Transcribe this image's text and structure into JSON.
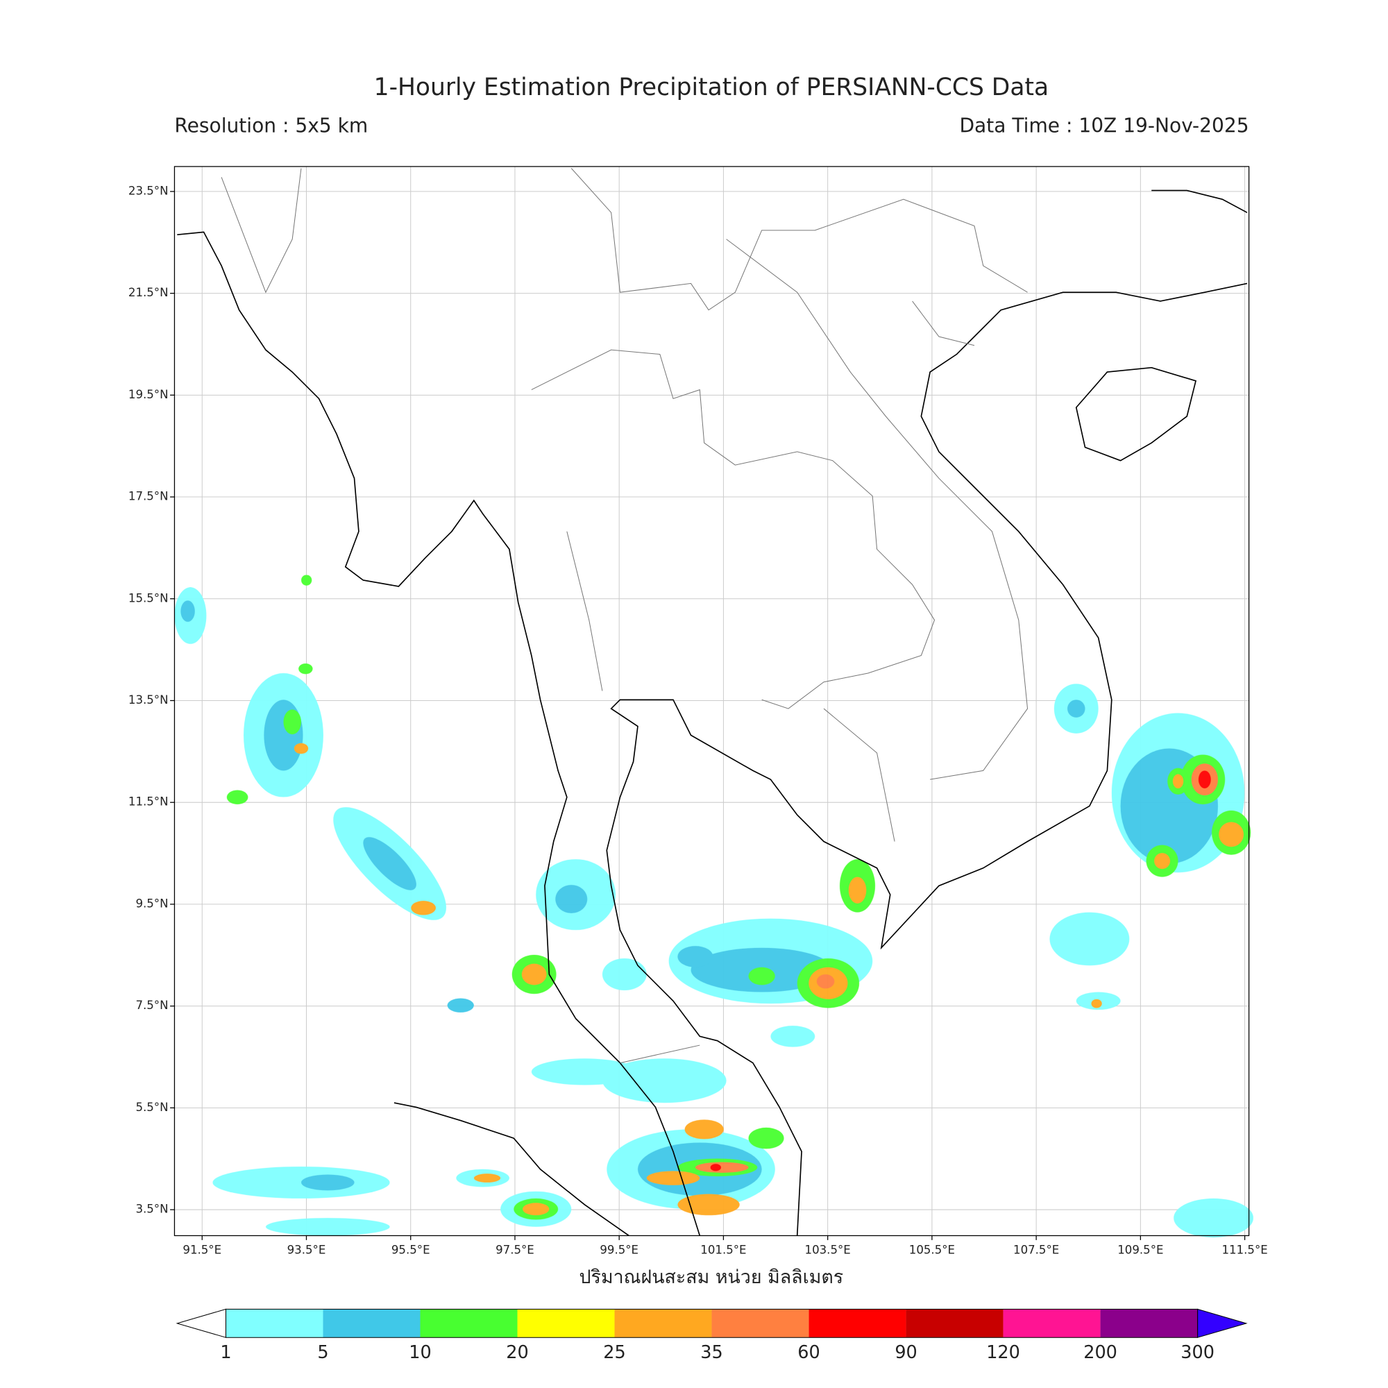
{
  "header": {
    "title": "1-Hourly Estimation Precipitation of PERSIANN-CCS Data",
    "resolution": "Resolution : 5x5 km",
    "data_time": "Data Time : 10Z 19-Nov-2025"
  },
  "map": {
    "lon_range": [
      90.97,
      111.58
    ],
    "lat_range": [
      2.99,
      23.99
    ],
    "grid": true,
    "lon_ticks": [
      {
        "value": 91.5,
        "label": "91.5°E"
      },
      {
        "value": 93.5,
        "label": "93.5°E"
      },
      {
        "value": 95.5,
        "label": "95.5°E"
      },
      {
        "value": 97.5,
        "label": "97.5°E"
      },
      {
        "value": 99.5,
        "label": "99.5°E"
      },
      {
        "value": 101.5,
        "label": "101.5°E"
      },
      {
        "value": 103.5,
        "label": "103.5°E"
      },
      {
        "value": 105.5,
        "label": "105.5°E"
      },
      {
        "value": 107.5,
        "label": "107.5°E"
      },
      {
        "value": 109.5,
        "label": "109.5°E"
      },
      {
        "value": 111.5,
        "label": "111.5°E"
      }
    ],
    "lat_ticks": [
      {
        "value": 23.5,
        "label": "23.5°N"
      },
      {
        "value": 21.5,
        "label": "21.5°N"
      },
      {
        "value": 19.5,
        "label": "19.5°N"
      },
      {
        "value": 17.5,
        "label": "17.5°N"
      },
      {
        "value": 15.5,
        "label": "15.5°N"
      },
      {
        "value": 13.5,
        "label": "13.5°N"
      },
      {
        "value": 11.5,
        "label": "11.5°N"
      },
      {
        "value": 9.5,
        "label": "9.5°N"
      },
      {
        "value": 7.5,
        "label": "7.5°N"
      },
      {
        "value": 5.5,
        "label": "5.5°N"
      },
      {
        "value": 3.5,
        "label": "3.5°N"
      }
    ],
    "x_label": "ปริมาณฝนสะสม หน่วย มิลลิเมตร"
  },
  "colorbar": {
    "levels": [
      1,
      5,
      10,
      20,
      25,
      35,
      60,
      90,
      120,
      200,
      300
    ],
    "colors": [
      "#80ffff",
      "#40c8e8",
      "#48ff30",
      "#ffff00",
      "#ffa820",
      "#ff8040",
      "#ff0000",
      "#c80000",
      "#ff1493",
      "#8b008b"
    ],
    "under_color": "#ffffff",
    "over_color": "#3300ff"
  }
}
